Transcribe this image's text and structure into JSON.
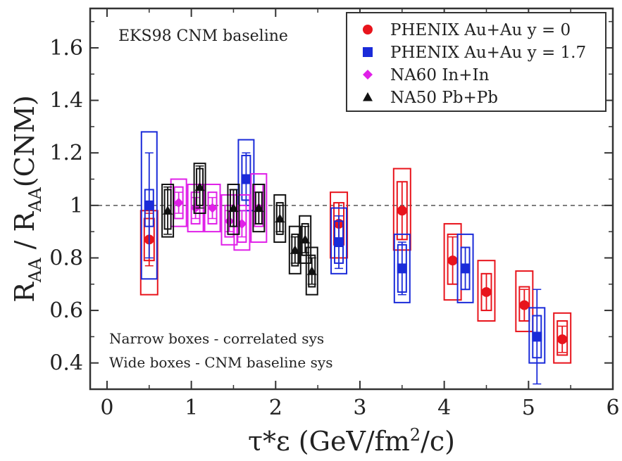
{
  "chart_data": {
    "type": "scatter",
    "annotation": "EKS98 CNM baseline",
    "notes": [
      "Narrow boxes - correlated sys",
      "Wide boxes - CNM baseline sys"
    ],
    "xlabel": {
      "base": "τ*ε (GeV/fm",
      "sup": "2",
      "tail": "/c)"
    },
    "ylabel": {
      "r1": "R",
      "s1": "AA",
      "mid": " / R",
      "s2": "AA",
      "tail": "(CNM)"
    },
    "xlim": [
      -0.2,
      6
    ],
    "ylim": [
      0.3,
      1.75
    ],
    "xticks": [
      0,
      1,
      2,
      3,
      4,
      5,
      6
    ],
    "yticks": [
      0.4,
      0.6,
      0.8,
      1,
      1.2,
      1.4,
      1.6
    ],
    "ytick_labels": [
      "0.4",
      "0.6",
      "0.8",
      "1",
      "1.2",
      "1.4",
      "1.6"
    ],
    "reference_line": 1.0,
    "legend_position": "top-right",
    "series": [
      {
        "name": "PHENIX Au+Au y = 0",
        "marker": "circle",
        "color": "#e8141c",
        "points": [
          {
            "x": 0.5,
            "y": 0.87,
            "err": 0.1,
            "corr": [
              0.79,
              0.95
            ],
            "cnm": [
              0.66,
              0.98
            ]
          },
          {
            "x": 2.75,
            "y": 0.93,
            "err": 0.08,
            "corr": [
              0.85,
              1.01
            ],
            "cnm": [
              0.8,
              1.05
            ]
          },
          {
            "x": 3.5,
            "y": 0.98,
            "err": 0.11,
            "corr": [
              0.87,
              1.09
            ],
            "cnm": [
              0.83,
              1.14
            ]
          },
          {
            "x": 4.1,
            "y": 0.79,
            "err": 0.09,
            "corr": [
              0.7,
              0.89
            ],
            "cnm": [
              0.64,
              0.93
            ]
          },
          {
            "x": 4.5,
            "y": 0.67,
            "err": 0.07,
            "corr": [
              0.6,
              0.74
            ],
            "cnm": [
              0.56,
              0.79
            ]
          },
          {
            "x": 4.95,
            "y": 0.62,
            "err": 0.06,
            "corr": [
              0.56,
              0.69
            ],
            "cnm": [
              0.52,
              0.75
            ]
          },
          {
            "x": 5.4,
            "y": 0.49,
            "err": 0.05,
            "corr": [
              0.43,
              0.56
            ],
            "cnm": [
              0.4,
              0.59
            ]
          }
        ]
      },
      {
        "name": "PHENIX Au+Au y = 1.7",
        "marker": "square",
        "color": "#1a2bd9",
        "points": [
          {
            "x": 0.5,
            "y": 1.0,
            "err": 0.2,
            "corr": [
              0.92,
              1.06
            ],
            "cnm": [
              0.72,
              1.28
            ]
          },
          {
            "x": 1.65,
            "y": 1.1,
            "err": 0.1,
            "corr": [
              1.02,
              1.19
            ],
            "cnm": [
              0.98,
              1.25
            ]
          },
          {
            "x": 2.75,
            "y": 0.86,
            "err": 0.1,
            "corr": [
              0.78,
              0.94
            ],
            "cnm": [
              0.74,
              0.99
            ]
          },
          {
            "x": 3.5,
            "y": 0.76,
            "err": 0.1,
            "corr": [
              0.67,
              0.85
            ],
            "cnm": [
              0.63,
              0.89
            ]
          },
          {
            "x": 4.25,
            "y": 0.76,
            "err": 0.08,
            "corr": [
              0.68,
              0.84
            ],
            "cnm": [
              0.63,
              0.89
            ]
          },
          {
            "x": 5.1,
            "y": 0.5,
            "err": 0.18,
            "corr": [
              0.42,
              0.58
            ],
            "cnm": [
              0.4,
              0.61
            ]
          }
        ]
      },
      {
        "name": "NA60 In+In",
        "marker": "diamond",
        "color": "#e020e8",
        "points": [
          {
            "x": 0.85,
            "y": 1.01,
            "err": 0.04,
            "corr": [
              0.95,
              1.07
            ],
            "cnm": [
              0.92,
              1.1
            ]
          },
          {
            "x": 1.05,
            "y": 0.99,
            "err": 0.04,
            "corr": [
              0.93,
              1.05
            ],
            "cnm": [
              0.9,
              1.08
            ]
          },
          {
            "x": 1.25,
            "y": 0.99,
            "err": 0.04,
            "corr": [
              0.93,
              1.05
            ],
            "cnm": [
              0.9,
              1.08
            ]
          },
          {
            "x": 1.45,
            "y": 0.94,
            "err": 0.04,
            "corr": [
              0.88,
              1.0
            ],
            "cnm": [
              0.85,
              1.04
            ]
          },
          {
            "x": 1.6,
            "y": 0.93,
            "err": 0.05,
            "corr": [
              0.86,
              1.0
            ],
            "cnm": [
              0.83,
              1.04
            ]
          },
          {
            "x": 1.8,
            "y": 0.99,
            "err": 0.06,
            "corr": [
              0.92,
              1.08
            ],
            "cnm": [
              0.86,
              1.12
            ]
          }
        ]
      },
      {
        "name": "NA50 Pb+Pb",
        "marker": "triangle",
        "color": "#111111",
        "points": [
          {
            "x": 0.72,
            "y": 0.98,
            "err": 0.09,
            "corr": [
              0.91,
              1.06
            ],
            "cnm": [
              0.88,
              1.08
            ]
          },
          {
            "x": 1.1,
            "y": 1.07,
            "err": 0.08,
            "corr": [
              1.0,
              1.14
            ],
            "cnm": [
              0.97,
              1.16
            ]
          },
          {
            "x": 1.5,
            "y": 0.99,
            "err": 0.07,
            "corr": [
              0.92,
              1.06
            ],
            "cnm": [
              0.89,
              1.08
            ]
          },
          {
            "x": 1.8,
            "y": 0.99,
            "err": 0.06,
            "corr": [
              0.93,
              1.05
            ],
            "cnm": [
              0.9,
              1.08
            ]
          },
          {
            "x": 2.05,
            "y": 0.95,
            "err": 0.05,
            "corr": [
              0.89,
              1.01
            ],
            "cnm": [
              0.86,
              1.04
            ]
          },
          {
            "x": 2.23,
            "y": 0.83,
            "err": 0.05,
            "corr": [
              0.77,
              0.89
            ],
            "cnm": [
              0.74,
              0.92
            ]
          },
          {
            "x": 2.35,
            "y": 0.87,
            "err": 0.05,
            "corr": [
              0.81,
              0.93
            ],
            "cnm": [
              0.78,
              0.96
            ]
          },
          {
            "x": 2.43,
            "y": 0.75,
            "err": 0.05,
            "corr": [
              0.69,
              0.81
            ],
            "cnm": [
              0.66,
              0.84
            ]
          }
        ]
      }
    ]
  }
}
